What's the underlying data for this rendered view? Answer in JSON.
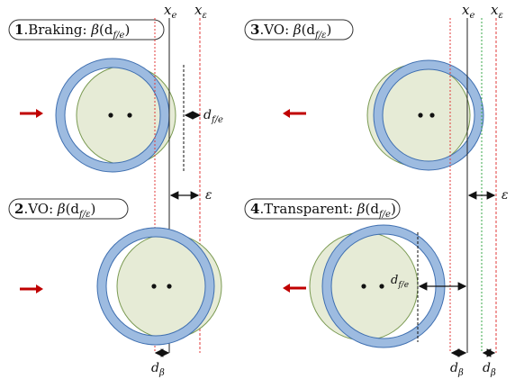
{
  "panels": {
    "p1": {
      "num": "1",
      "title": ".Braking: ",
      "beta": "β",
      "arg": "(d",
      "sub": "f/e",
      "close": ")"
    },
    "p2": {
      "num": "2",
      "title": ".VO: ",
      "beta": "β",
      "arg": "(d",
      "sub": "f/ε",
      "close": ")"
    },
    "p3": {
      "num": "3",
      "title": ".VO: ",
      "beta": "β",
      "arg": "(d",
      "sub": "f/ε",
      "close": ")"
    },
    "p4": {
      "num": "4",
      "title": ".Transparent: ",
      "beta": "β",
      "arg": "(d",
      "sub": "f/e",
      "close": ")"
    }
  },
  "labels": {
    "x": "x",
    "e": "e",
    "eps": "ε",
    "d": "d",
    "fe": "f/e",
    "feps": "f/ε",
    "beta": "β"
  },
  "colors": {
    "ring": "#9dbbe0",
    "ring_stroke": "#3f6fb0",
    "fill": "#e6ebd6",
    "fill_stroke": "#7a9a52",
    "arrow_red": "#c00000",
    "line_red": "#e03a3a",
    "line_green": "#3aa84a"
  }
}
